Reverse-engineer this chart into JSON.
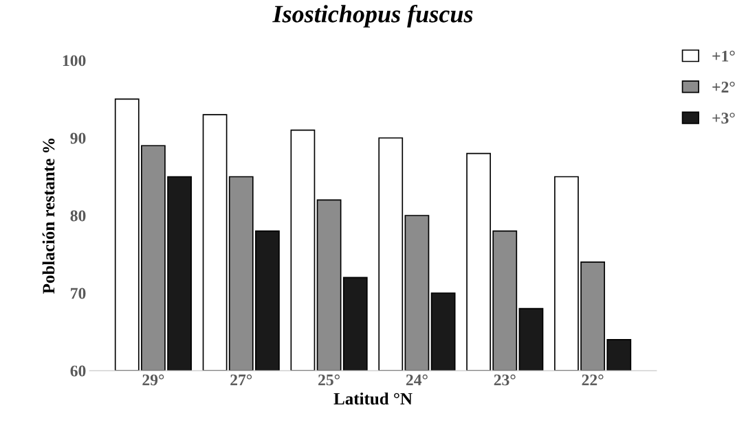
{
  "chart_data": {
    "type": "bar",
    "title": "Isostichopus fuscus",
    "xlabel": "Latitud °N",
    "ylabel": "Población restante %",
    "categories": [
      "29°",
      "27°",
      "25°",
      "24°",
      "23°",
      "22°"
    ],
    "series": [
      {
        "name": "+1°",
        "color": "#ffffff",
        "values": [
          95,
          93,
          91,
          90,
          88,
          85
        ]
      },
      {
        "name": "+2°",
        "color": "#8c8c8c",
        "values": [
          89,
          85,
          82,
          80,
          78,
          74
        ]
      },
      {
        "name": "+3°",
        "color": "#1a1a1a",
        "values": [
          85,
          78,
          72,
          70,
          68,
          64
        ]
      }
    ],
    "ylim": [
      60,
      100
    ],
    "yticks": [
      60,
      70,
      80,
      90,
      100
    ],
    "grid": false,
    "legend": "top right"
  }
}
